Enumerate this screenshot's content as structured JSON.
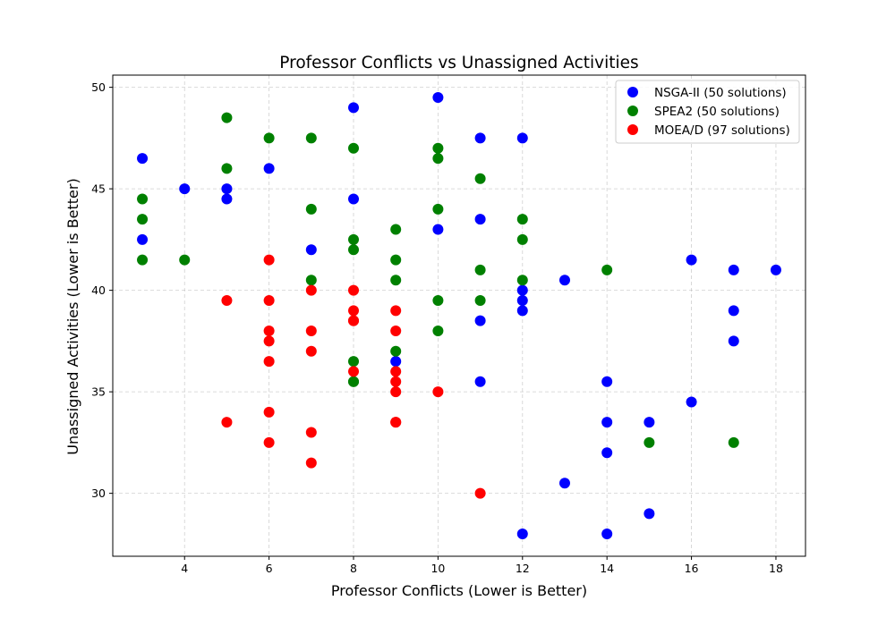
{
  "chart_data": {
    "type": "scatter",
    "title": "Professor Conflicts vs Unassigned Activities",
    "xlabel": "Professor Conflicts (Lower is Better)",
    "ylabel": "Unassigned Activities (Lower is Better)",
    "xlim": [
      2.3,
      18.7
    ],
    "ylim": [
      26.9,
      50.6
    ],
    "xticks": [
      4,
      6,
      8,
      10,
      12,
      14,
      16,
      18
    ],
    "yticks": [
      30,
      35,
      40,
      45,
      50
    ],
    "grid": true,
    "legend_position": "top-right",
    "series": [
      {
        "name": "NSGA-II (50 solutions)",
        "color": "#0000ff",
        "x": [
          3,
          3,
          4,
          5,
          5,
          6,
          7,
          8,
          8,
          9,
          10,
          10,
          11,
          11,
          11,
          11,
          12,
          12,
          12,
          12,
          13,
          13,
          14,
          14,
          14,
          14,
          15,
          15,
          16,
          16,
          17,
          17,
          17,
          18,
          12
        ],
        "y": [
          46.5,
          42.5,
          45,
          45,
          44.5,
          46,
          42,
          49,
          44.5,
          36.5,
          49.5,
          43,
          47.5,
          43.5,
          38.5,
          35.5,
          47.5,
          40,
          39.5,
          39,
          40.5,
          30.5,
          35.5,
          33.5,
          32,
          28,
          33.5,
          29,
          41.5,
          34.5,
          41,
          39,
          37.5,
          41,
          28
        ]
      },
      {
        "name": "SPEA2 (50 solutions)",
        "color": "#008000",
        "x": [
          3,
          3,
          3,
          4,
          5,
          5,
          6,
          7,
          7,
          7,
          8,
          8,
          8,
          8,
          8,
          8,
          9,
          9,
          9,
          9,
          10,
          10,
          10,
          10,
          10,
          11,
          11,
          11,
          12,
          12,
          12,
          14,
          15,
          17
        ],
        "y": [
          44.5,
          43.5,
          41.5,
          41.5,
          48.5,
          46,
          47.5,
          47.5,
          44,
          40.5,
          47,
          42.5,
          42,
          36.5,
          35.5,
          35.5,
          43,
          41.5,
          40.5,
          37,
          47,
          46.5,
          44,
          39.5,
          38,
          45.5,
          41,
          39.5,
          43.5,
          42.5,
          40.5,
          41,
          32.5,
          32.5
        ]
      },
      {
        "name": "MOEA/D (97 solutions)",
        "color": "#ff0000",
        "x": [
          5,
          5,
          6,
          6,
          6,
          6,
          6,
          6,
          6,
          7,
          7,
          7,
          7,
          7,
          8,
          8,
          8,
          8,
          8,
          9,
          9,
          9,
          9,
          9,
          9,
          9,
          10,
          11
        ],
        "y": [
          39.5,
          33.5,
          41.5,
          39.5,
          38,
          37.5,
          36.5,
          34,
          32.5,
          40,
          38,
          37,
          33,
          31.5,
          40,
          39,
          38.5,
          38.5,
          36,
          39,
          38,
          36,
          35.5,
          35,
          33.5,
          33.5,
          35,
          30
        ]
      }
    ]
  }
}
